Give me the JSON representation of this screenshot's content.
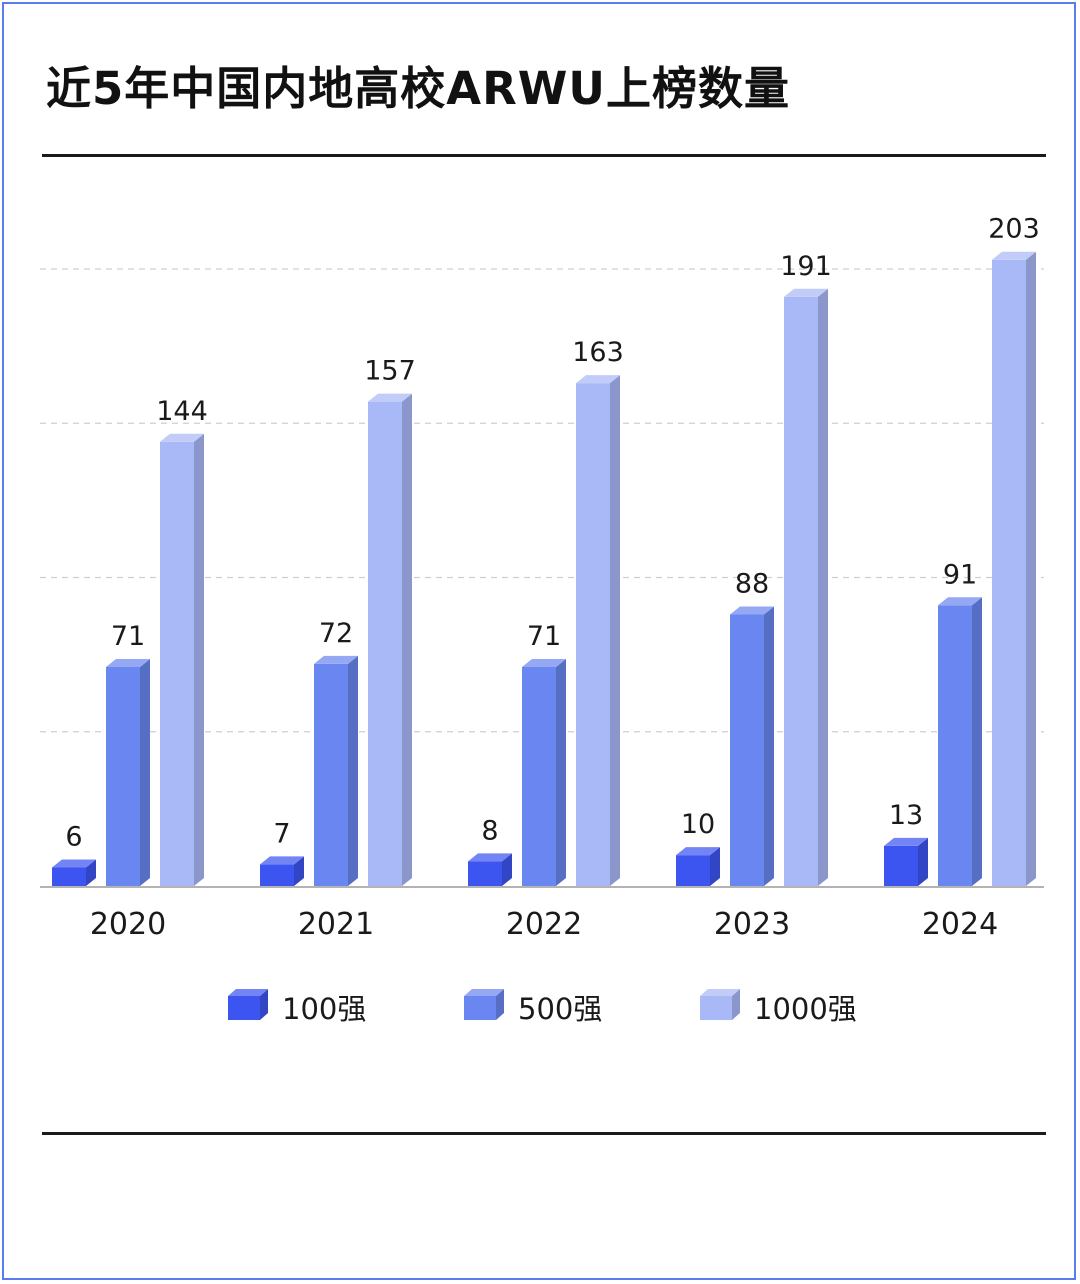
{
  "title": "近5年中国内地高校ARWU上榜数量",
  "colors": {
    "top100": "#3d55f0",
    "top500": "#6a86f0",
    "top1000": "#a9b8f7",
    "grid": "#cfcfcf",
    "axis": "#9a9a9a"
  },
  "chart_data": {
    "type": "bar",
    "title": "近5年中国内地高校ARWU上榜数量",
    "categories": [
      "2020",
      "2021",
      "2022",
      "2023",
      "2024"
    ],
    "series": [
      {
        "name": "100强",
        "values": [
          6,
          7,
          8,
          10,
          13
        ]
      },
      {
        "name": "500强",
        "values": [
          71,
          72,
          71,
          88,
          91
        ]
      },
      {
        "name": "1000强",
        "values": [
          144,
          157,
          163,
          191,
          203
        ]
      }
    ],
    "ylim": [
      0,
      220
    ],
    "grid": true,
    "legend_position": "bottom",
    "xlabel": "",
    "ylabel": ""
  },
  "legend": [
    {
      "label": "100强",
      "color_key": "top100"
    },
    {
      "label": "500强",
      "color_key": "top500"
    },
    {
      "label": "1000强",
      "color_key": "top1000"
    }
  ]
}
